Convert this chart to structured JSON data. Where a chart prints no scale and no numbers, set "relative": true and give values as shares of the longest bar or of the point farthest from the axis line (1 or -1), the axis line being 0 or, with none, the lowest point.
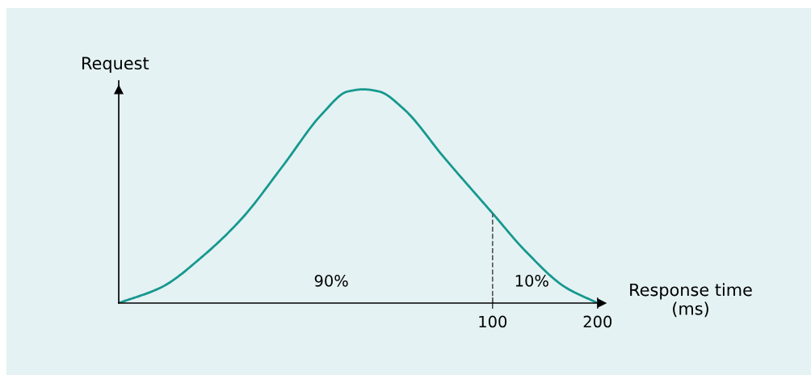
{
  "chart_data": {
    "type": "line",
    "relative": true,
    "xlabel": "Response time\n(ms)",
    "ylabel": "Request",
    "x": [
      -256,
      -215,
      -177,
      -138,
      -100,
      -62,
      -38,
      -23,
      -8,
      15,
      54,
      100,
      131,
      169,
      200
    ],
    "series": [
      {
        "color": "#16988f",
        "values": [
          0,
          0.075,
          0.215,
          0.4,
          0.64,
          0.887,
          0.99,
          1,
          0.99,
          0.91,
          0.68,
          0.42,
          0.245,
          0.075,
          0
        ]
      }
    ],
    "xlim": [
      -256,
      204
    ],
    "xticks": [
      100,
      200
    ],
    "ref_lines": [
      {
        "axis": "x",
        "value": 100,
        "color": "#555555",
        "line_style": "dashed"
      }
    ],
    "annotations": [
      "90%",
      "10%"
    ],
    "marker": "none",
    "line_style": "solid",
    "grid": false,
    "legend": false
  }
}
